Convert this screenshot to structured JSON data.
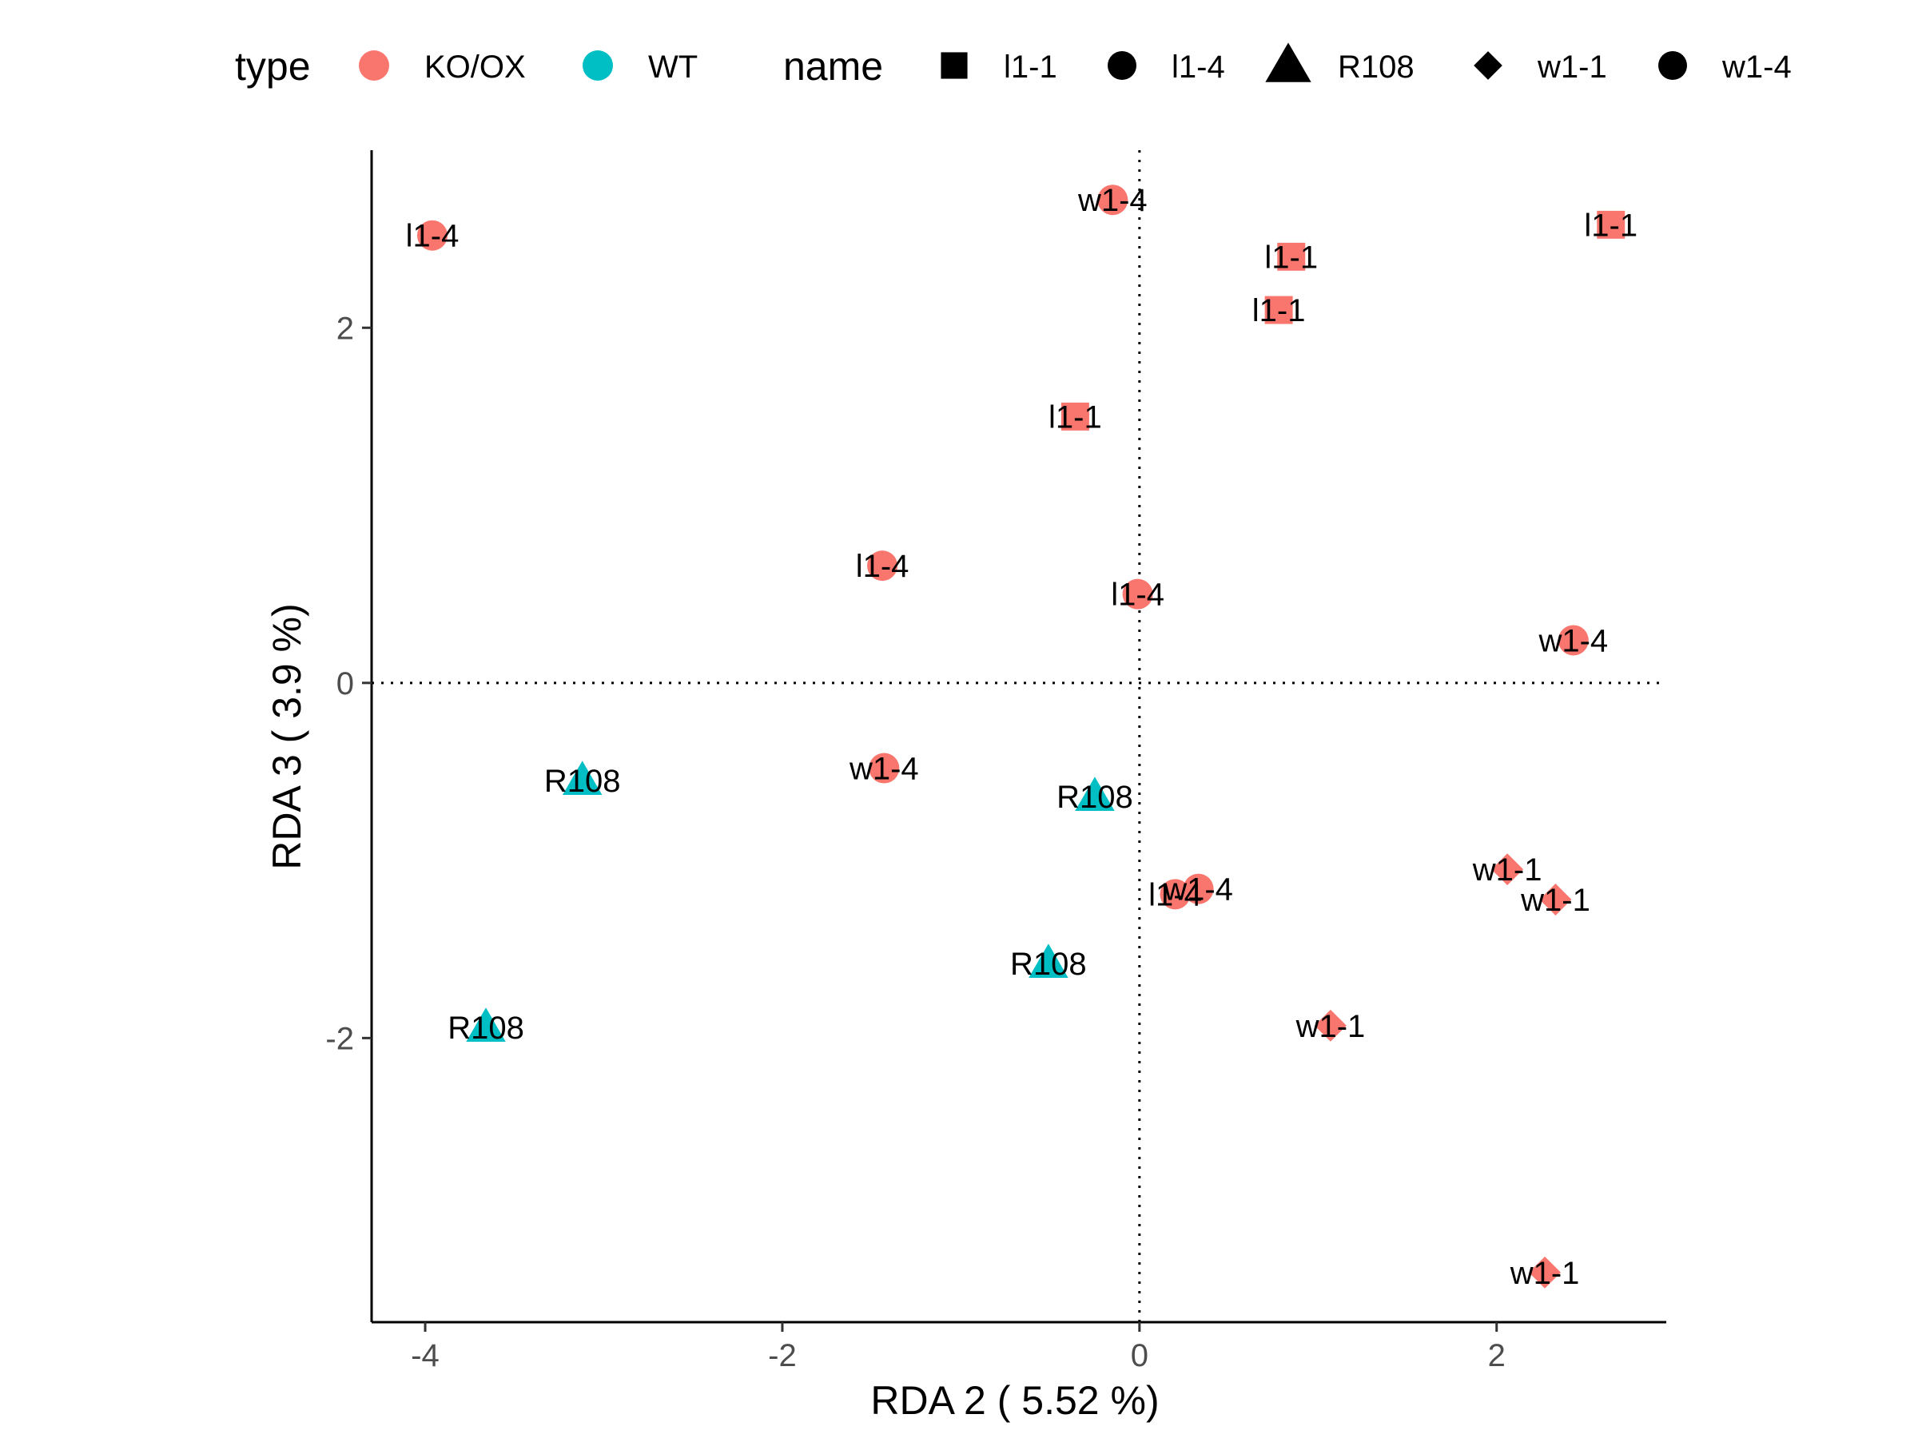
{
  "chart_data": {
    "type": "scatter",
    "xlabel": "RDA 2 ( 5.52 %)",
    "ylabel": "RDA 3 ( 3.9 %)",
    "xlim": [
      -4.3,
      2.95
    ],
    "ylim": [
      -3.6,
      3.0
    ],
    "xticks": [
      -4,
      -2,
      0,
      2
    ],
    "yticks": [
      -2,
      0,
      2
    ],
    "xtick_labels": [
      "-4",
      "-2",
      "0",
      "2"
    ],
    "ytick_labels": [
      "-2",
      "0",
      "2"
    ],
    "reference_lines": {
      "x": 0,
      "y": 0,
      "style": "dotted"
    },
    "legend": {
      "placement": "top",
      "type_title": "type",
      "type_entries": [
        {
          "label": "KO/OX",
          "color": "#F8766D"
        },
        {
          "label": "WT",
          "color": "#00BFC4"
        }
      ],
      "name_title": "name",
      "name_entries": [
        {
          "label": "l1-1",
          "shape": "square"
        },
        {
          "label": "l1-4",
          "shape": "circle"
        },
        {
          "label": "R108",
          "shape": "triangle"
        },
        {
          "label": "w1-1",
          "shape": "diamond"
        },
        {
          "label": "w1-4",
          "shape": "circle"
        }
      ]
    },
    "colors": {
      "KO/OX": "#F8766D",
      "WT": "#00BFC4"
    },
    "shapes": {
      "l1-1": "square",
      "l1-4": "circle",
      "R108": "triangle",
      "w1-1": "diamond",
      "w1-4": "circle"
    },
    "points": [
      {
        "x": -0.15,
        "y": 2.72,
        "type": "KO/OX",
        "name": "w1-4",
        "label": "w1-4"
      },
      {
        "x": -3.96,
        "y": 2.52,
        "type": "KO/OX",
        "name": "l1-4",
        "label": "l1-4"
      },
      {
        "x": 2.64,
        "y": 2.58,
        "type": "KO/OX",
        "name": "l1-1",
        "label": "l1-1"
      },
      {
        "x": 0.85,
        "y": 2.4,
        "type": "KO/OX",
        "name": "l1-1",
        "label": "l1-1"
      },
      {
        "x": 0.78,
        "y": 2.1,
        "type": "KO/OX",
        "name": "l1-1",
        "label": "l1-1"
      },
      {
        "x": -0.36,
        "y": 1.5,
        "type": "KO/OX",
        "name": "l1-1",
        "label": "l1-1"
      },
      {
        "x": -1.44,
        "y": 0.66,
        "type": "KO/OX",
        "name": "l1-4",
        "label": "l1-4"
      },
      {
        "x": -0.01,
        "y": 0.5,
        "type": "KO/OX",
        "name": "l1-4",
        "label": "l1-4"
      },
      {
        "x": 2.43,
        "y": 0.24,
        "type": "KO/OX",
        "name": "w1-4",
        "label": "w1-4"
      },
      {
        "x": -3.12,
        "y": -0.55,
        "type": "WT",
        "name": "R108",
        "label": "R108"
      },
      {
        "x": -1.43,
        "y": -0.48,
        "type": "KO/OX",
        "name": "w1-4",
        "label": "w1-4"
      },
      {
        "x": -0.25,
        "y": -0.64,
        "type": "WT",
        "name": "R108",
        "label": "R108"
      },
      {
        "x": 0.2,
        "y": -1.19,
        "type": "KO/OX",
        "name": "l1-4",
        "label": "l1-4"
      },
      {
        "x": 0.33,
        "y": -1.16,
        "type": "KO/OX",
        "name": "w1-4",
        "label": "w1-4"
      },
      {
        "x": 2.06,
        "y": -1.05,
        "type": "KO/OX",
        "name": "w1-1",
        "label": "w1-1"
      },
      {
        "x": 2.33,
        "y": -1.22,
        "type": "KO/OX",
        "name": "w1-1",
        "label": "w1-1"
      },
      {
        "x": -0.51,
        "y": -1.58,
        "type": "WT",
        "name": "R108",
        "label": "R108"
      },
      {
        "x": -3.66,
        "y": -1.94,
        "type": "WT",
        "name": "R108",
        "label": "R108"
      },
      {
        "x": 1.07,
        "y": -1.93,
        "type": "KO/OX",
        "name": "w1-1",
        "label": "w1-1"
      },
      {
        "x": 2.27,
        "y": -3.32,
        "type": "KO/OX",
        "name": "w1-1",
        "label": "w1-1"
      }
    ]
  }
}
